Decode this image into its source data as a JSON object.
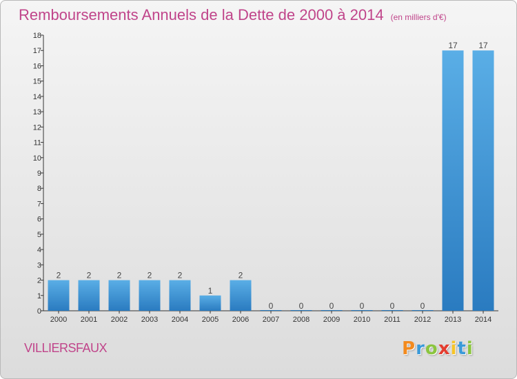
{
  "header": {
    "title": "Remboursements Annuels de la Dette de 2000 à 2014",
    "unit": "(en milliers d'€)"
  },
  "commune": "VILLIERSFAUX",
  "logo": {
    "letters": [
      "P",
      "r",
      "o",
      "x",
      "i",
      "t",
      "i"
    ],
    "colors": [
      "#f28a1e",
      "#3a9ad9",
      "#8bc53f",
      "#e43d2f",
      "#f6c428",
      "#3a9ad9",
      "#8bc53f"
    ]
  },
  "colors": {
    "title": "#c0448a",
    "bar_top": "#5aaee6",
    "bar_bottom": "#2a7bc0"
  },
  "chart_data": {
    "type": "bar",
    "title": "Remboursements Annuels de la Dette de 2000 à 2014",
    "subtitle": "(en milliers d'€)",
    "categories": [
      "2000",
      "2001",
      "2002",
      "2003",
      "2004",
      "2005",
      "2006",
      "2007",
      "2008",
      "2009",
      "2010",
      "2011",
      "2012",
      "2013",
      "2014"
    ],
    "values": [
      2,
      2,
      2,
      2,
      2,
      1,
      2,
      0,
      0,
      0,
      0,
      0,
      0,
      17,
      17
    ],
    "ylim": [
      0,
      18
    ],
    "yticks": [
      0,
      1,
      2,
      3,
      4,
      5,
      6,
      7,
      8,
      9,
      10,
      11,
      12,
      13,
      14,
      15,
      16,
      17,
      18
    ],
    "xlabel": "",
    "ylabel": "",
    "grid": false,
    "legend": "none"
  }
}
